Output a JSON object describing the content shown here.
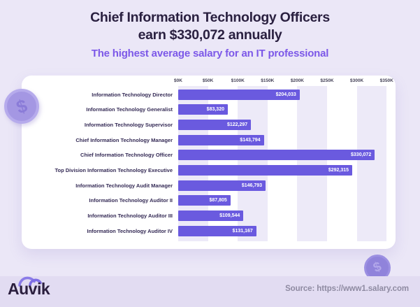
{
  "header": {
    "title_line1": "Chief Information Technology Officers",
    "title_line2": "earn $330,072 annually",
    "subtitle": "The highest average salary for an IT professional"
  },
  "chart_data": {
    "type": "bar",
    "orientation": "horizontal",
    "x_ticks": [
      "$0K",
      "$50K",
      "$100K",
      "$150K",
      "$200K",
      "$250K",
      "$300K",
      "$350K"
    ],
    "xlim": [
      0,
      350000
    ],
    "grid": "alternating-vertical-bands",
    "categories": [
      "Information Technology Director",
      "Information Technology Generalist",
      "Information Technology Supervisor",
      "Chief Information Technology Manager",
      "Chief Information Technology Officer",
      "Top Division Information Technology Executive",
      "Information Technology Audit Manager",
      "Information Technology Auditor II",
      "Information Technology Auditor III",
      "Information Technology Auditor IV"
    ],
    "values": [
      204033,
      83320,
      122297,
      143794,
      330072,
      292315,
      146793,
      87805,
      109544,
      131167
    ],
    "value_labels": [
      "$204,033",
      "$83,320",
      "$122,297",
      "$143,794",
      "$330,072",
      "$292,315",
      "$146,793",
      "$87,805",
      "$109,544",
      "$131,167"
    ]
  },
  "footer": {
    "logo_text": "Auvik",
    "source": "Source: https://www1.salary.com"
  },
  "icons": {
    "left_coin": "dollar-coin",
    "right_coin": "dollar-coin",
    "coin_symbol": "$"
  },
  "colors": {
    "page_bg": "#EBE7F7",
    "footer_bg": "#E2DCF2",
    "card_bg": "#FFFFFF",
    "grid_band": "#EDEAF8",
    "bar": "#6A5ADF",
    "title": "#2A2040",
    "subtitle": "#7C58E8",
    "category_label": "#342A55",
    "tick_label": "#454258",
    "value_label": "#FFFFFF",
    "source_text": "#8F8BA2",
    "logo_text": "#2B1F3E"
  }
}
